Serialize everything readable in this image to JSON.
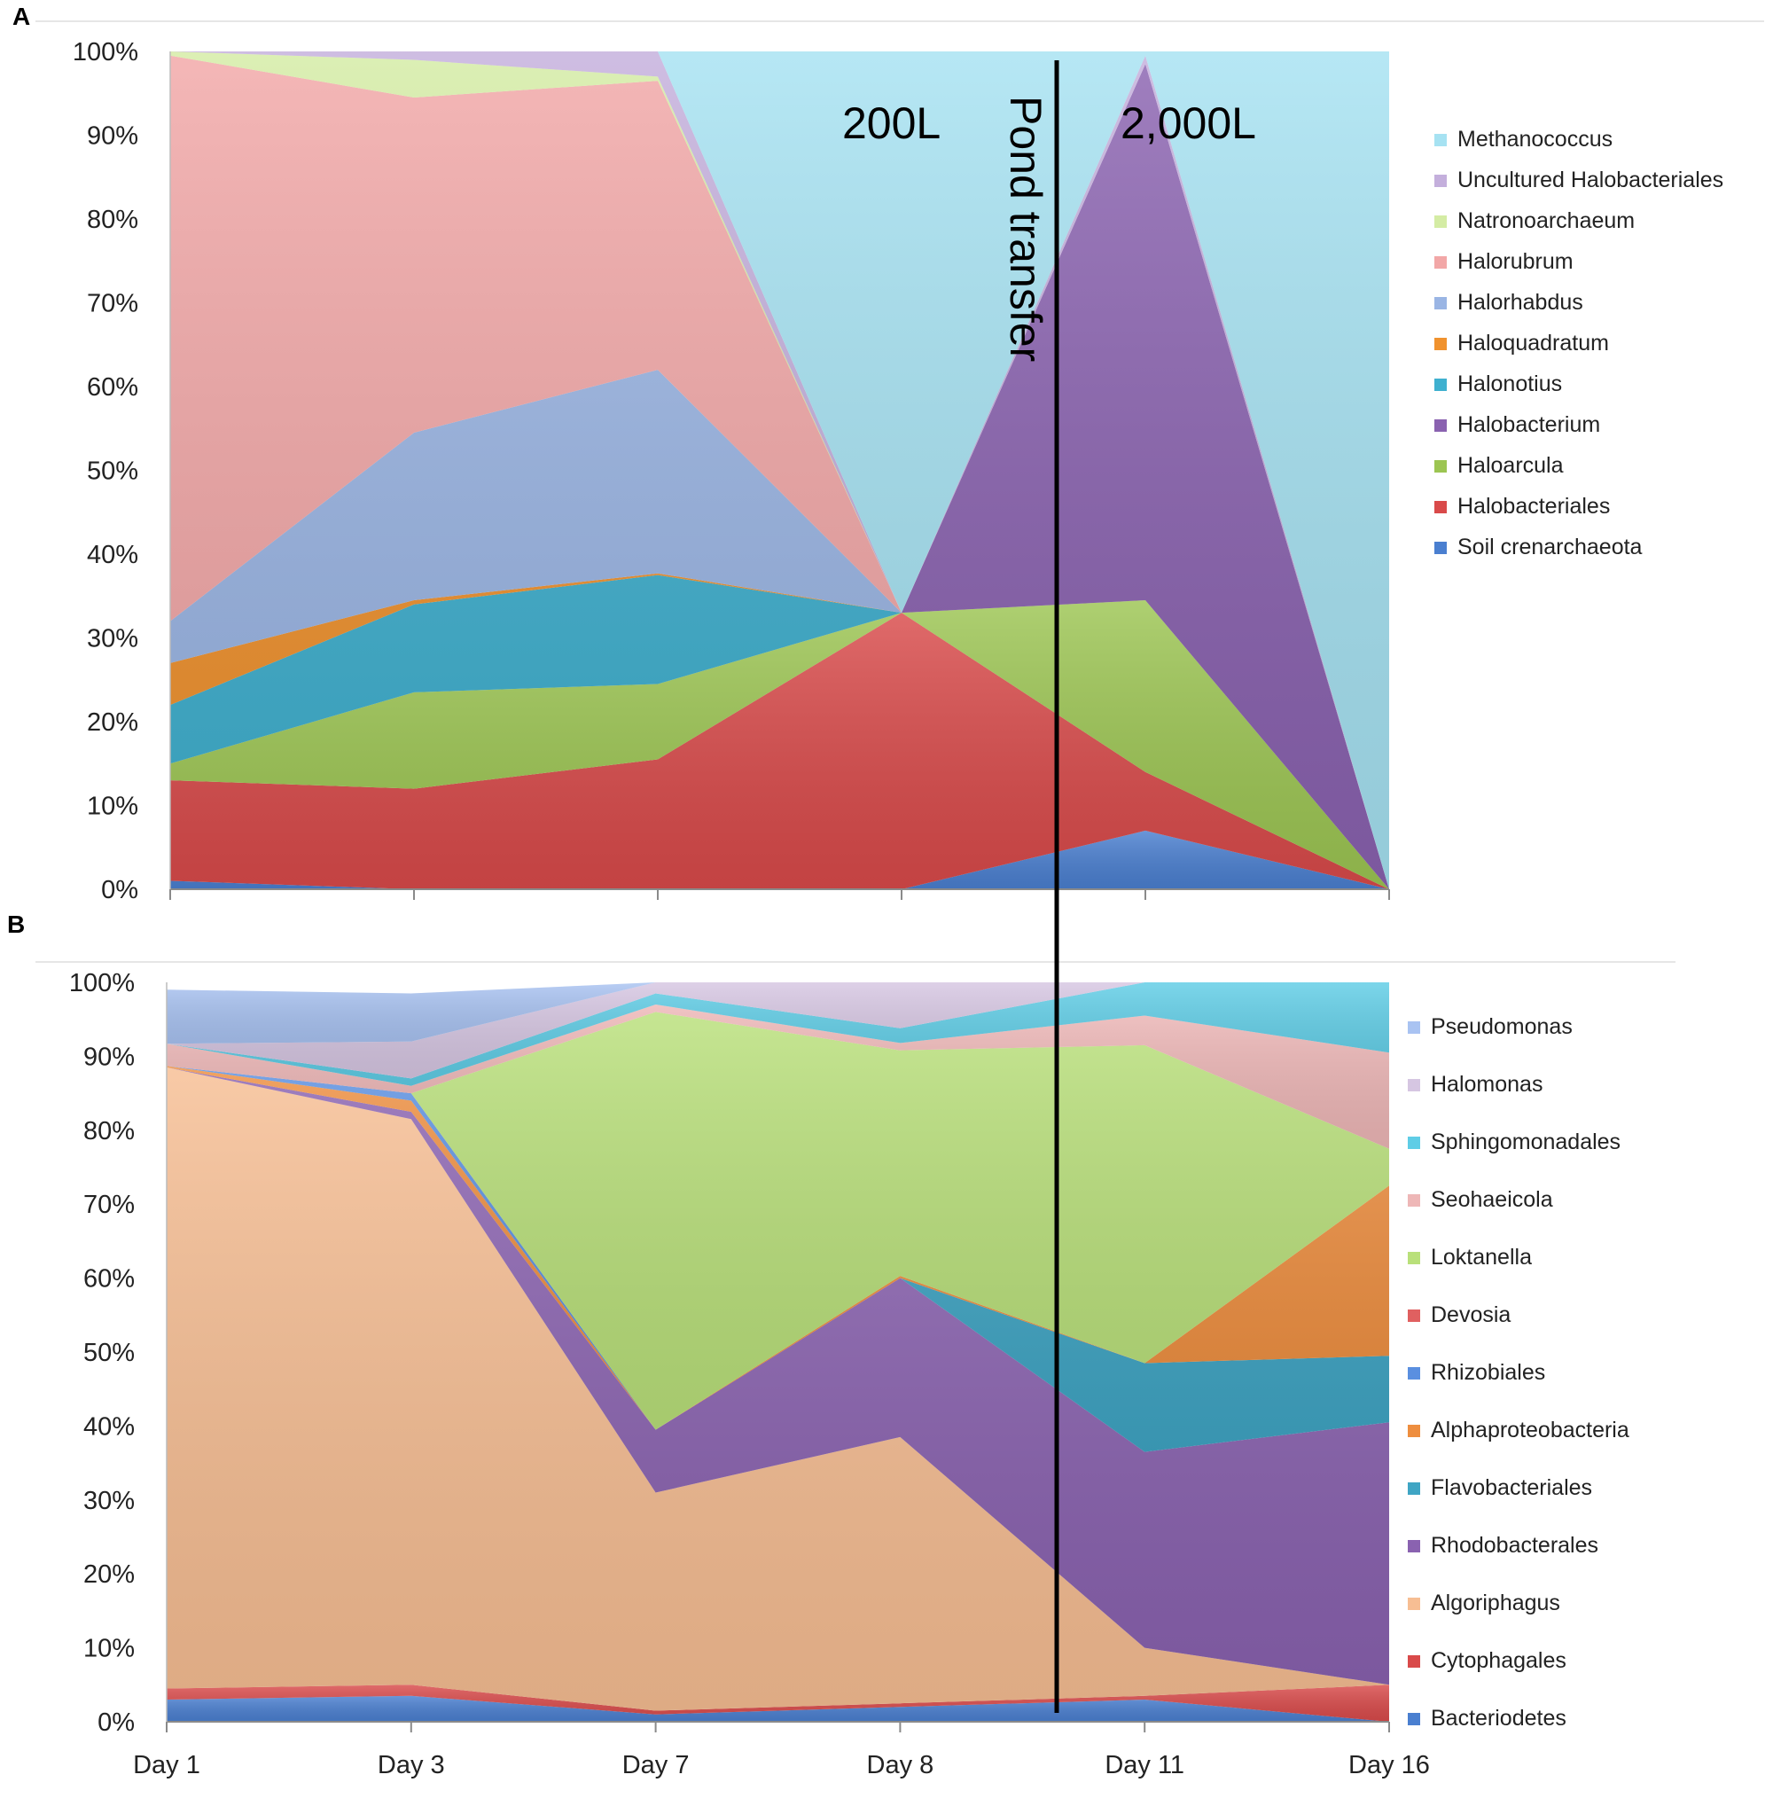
{
  "chart_data": [
    {
      "panel_label": "A",
      "type": "area",
      "stacked": true,
      "percent": true,
      "categories": [
        "Day 1",
        "Day 3",
        "Day 7",
        "Day 8",
        "Day 11",
        "Day 16"
      ],
      "y_ticks": [
        "0%",
        "10%",
        "20%",
        "30%",
        "40%",
        "50%",
        "60%",
        "70%",
        "80%",
        "90%",
        "100%"
      ],
      "ylim": [
        0,
        100
      ],
      "legend_position": "right",
      "series": [
        {
          "name": "Soil crenarchaeota",
          "color": "#4a7fd0",
          "values": [
            1,
            0,
            0,
            0,
            7,
            0
          ]
        },
        {
          "name": "Halobacteriales",
          "color": "#d94a4a",
          "values": [
            12,
            12,
            15.5,
            33,
            7,
            0
          ]
        },
        {
          "name": "Haloarcula",
          "color": "#9cc552",
          "values": [
            2,
            11.5,
            9,
            0,
            20.5,
            0
          ]
        },
        {
          "name": "Halobacterium",
          "color": "#8a62b0",
          "values": [
            0,
            0,
            0,
            0,
            64,
            0
          ]
        },
        {
          "name": "Halonotius",
          "color": "#3fb0cf",
          "values": [
            7,
            10.5,
            13,
            0,
            0,
            0
          ]
        },
        {
          "name": "Haloquadratum",
          "color": "#f0922e",
          "values": [
            5,
            0.5,
            0.2,
            0,
            0,
            0
          ]
        },
        {
          "name": "Halorhabdus",
          "color": "#9ab5e4",
          "values": [
            5,
            20,
            24.3,
            0,
            0,
            0
          ]
        },
        {
          "name": "Halorubrum",
          "color": "#f2a7a7",
          "values": [
            67.5,
            40,
            34.5,
            0,
            0,
            0
          ]
        },
        {
          "name": "Natronoarchaeum",
          "color": "#d4eca4",
          "values": [
            0.5,
            4.5,
            0.5,
            0,
            0,
            0
          ]
        },
        {
          "name": "Uncultured Halobacteriales",
          "color": "#c4afdc",
          "values": [
            0,
            1,
            3,
            0,
            1,
            0
          ]
        },
        {
          "name": "Methanococcus",
          "color": "#a6e2f2",
          "values": [
            0,
            0,
            0,
            67,
            0.5,
            100
          ]
        }
      ],
      "annotations": [
        "200L",
        "2,000L",
        "Pond transfer"
      ]
    },
    {
      "panel_label": "B",
      "type": "area",
      "stacked": true,
      "percent": true,
      "categories": [
        "Day 1",
        "Day 3",
        "Day 7",
        "Day 8",
        "Day 11",
        "Day 16"
      ],
      "y_ticks": [
        "0%",
        "10%",
        "20%",
        "30%",
        "40%",
        "50%",
        "60%",
        "70%",
        "80%",
        "90%",
        "100%"
      ],
      "ylim": [
        0,
        100
      ],
      "legend_position": "right",
      "series": [
        {
          "name": "Bacteriodetes",
          "color": "#4a7fd0",
          "values": [
            3,
            3.5,
            1,
            2,
            3,
            0
          ]
        },
        {
          "name": "Cytophagales",
          "color": "#d94a4a",
          "values": [
            1.5,
            1.5,
            0.5,
            0.5,
            0.5,
            5
          ]
        },
        {
          "name": "Algoriphagus",
          "color": "#f7be93",
          "values": [
            84,
            76.5,
            29.5,
            36,
            6.5,
            0
          ]
        },
        {
          "name": "Rhodobacterales",
          "color": "#8a62b0",
          "values": [
            0,
            1,
            8.5,
            21.5,
            26.5,
            35.5
          ]
        },
        {
          "name": "Flavobacteriales",
          "color": "#3fa5c4",
          "values": [
            0,
            0,
            0,
            0,
            12,
            9
          ]
        },
        {
          "name": "Alphaproteobacteria",
          "color": "#ee8e3f",
          "values": [
            0.2,
            1.5,
            0,
            0.3,
            0,
            23
          ]
        },
        {
          "name": "Rhizobiales",
          "color": "#5a8fe0",
          "values": [
            0,
            1,
            0,
            0,
            0,
            0
          ]
        },
        {
          "name": "Devosia",
          "color": "#e06060",
          "values": [
            0,
            0,
            0,
            0,
            0,
            0
          ]
        },
        {
          "name": "Loktanella",
          "color": "#b9e07a",
          "values": [
            0,
            0,
            56.5,
            30.5,
            43,
            5
          ]
        },
        {
          "name": "Seohaeicola",
          "color": "#eeb7b7",
          "values": [
            3,
            1,
            1,
            1,
            4,
            13
          ]
        },
        {
          "name": "Sphingomonadales",
          "color": "#5fcde6",
          "values": [
            0,
            1,
            1.5,
            2,
            4.5,
            9.5
          ]
        },
        {
          "name": "Halomonas",
          "color": "#d6c6e2",
          "values": [
            0,
            5,
            1.5,
            6.2,
            0,
            0
          ]
        },
        {
          "name": "Pseudomonas",
          "color": "#a9c3f2",
          "values": [
            7.3,
            6.5,
            0,
            0,
            0,
            0
          ]
        }
      ]
    }
  ]
}
